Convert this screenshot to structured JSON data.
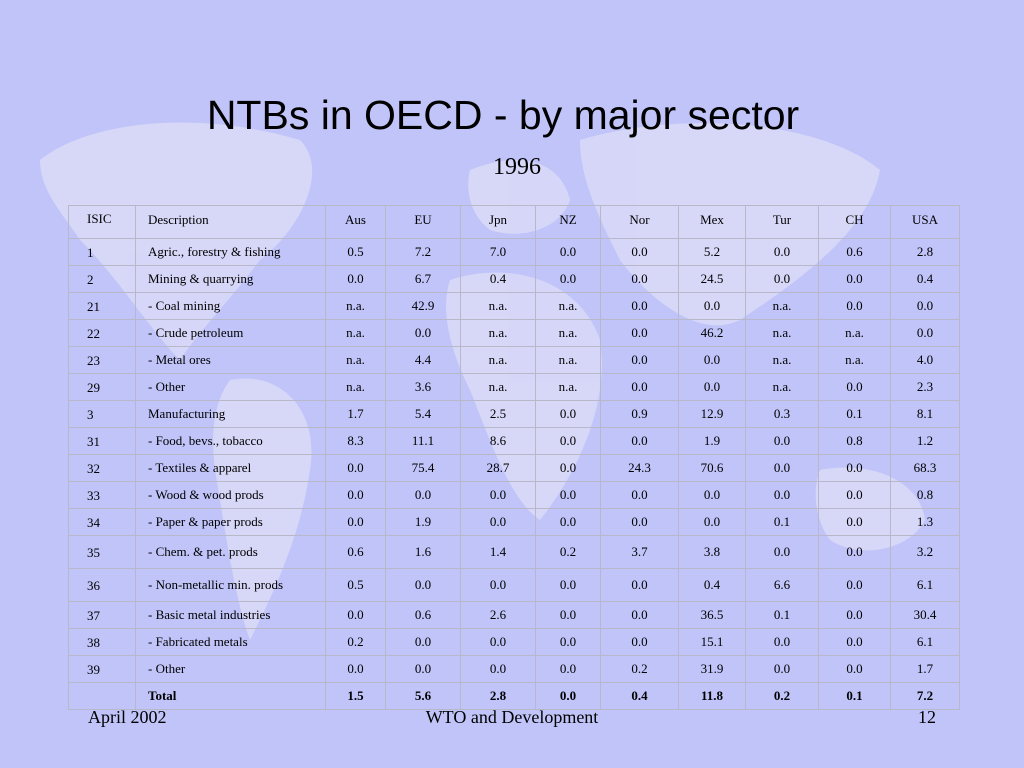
{
  "slide": {
    "title": "NTBs in OECD - by major sector",
    "subtitle": "1996",
    "table": {
      "header": [
        "ISIC",
        "Description",
        "Aus",
        "EU",
        "Jpn",
        "NZ",
        "Nor",
        "Mex",
        "Tur",
        "CH",
        "USA"
      ],
      "rows": [
        [
          "1",
          "Agric., forestry & fishing",
          "0.5",
          "7.2",
          "7.0",
          "0.0",
          "0.0",
          "5.2",
          "0.0",
          "0.6",
          "2.8"
        ],
        [
          "2",
          "Mining & quarrying",
          "0.0",
          "6.7",
          "0.4",
          "0.0",
          "0.0",
          "24.5",
          "0.0",
          "0.0",
          "0.4"
        ],
        [
          "21",
          "- Coal mining",
          "n.a.",
          "42.9",
          "n.a.",
          "n.a.",
          "0.0",
          "0.0",
          "n.a.",
          "0.0",
          "0.0"
        ],
        [
          "22",
          "- Crude petroleum",
          "n.a.",
          "0.0",
          "n.a.",
          "n.a.",
          "0.0",
          "46.2",
          "n.a.",
          "n.a.",
          "0.0"
        ],
        [
          "23",
          "- Metal ores",
          "n.a.",
          "4.4",
          "n.a.",
          "n.a.",
          "0.0",
          "0.0",
          "n.a.",
          "n.a.",
          "4.0"
        ],
        [
          "29",
          "- Other",
          "n.a.",
          "3.6",
          "n.a.",
          "n.a.",
          "0.0",
          "0.0",
          "n.a.",
          "0.0",
          "2.3"
        ],
        [
          "3",
          "Manufacturing",
          "1.7",
          "5.4",
          "2.5",
          "0.0",
          "0.9",
          "12.9",
          "0.3",
          "0.1",
          "8.1"
        ],
        [
          "31",
          "- Food, bevs., tobacco",
          "8.3",
          "11.1",
          "8.6",
          "0.0",
          "0.0",
          "1.9",
          "0.0",
          "0.8",
          "1.2"
        ],
        [
          "32",
          "- Textiles & apparel",
          "0.0",
          "75.4",
          "28.7",
          "0.0",
          "24.3",
          "70.6",
          "0.0",
          "0.0",
          "68.3"
        ],
        [
          "33",
          "- Wood & wood prods",
          "0.0",
          "0.0",
          "0.0",
          "0.0",
          "0.0",
          "0.0",
          "0.0",
          "0.0",
          "0.8"
        ],
        [
          "34",
          "- Paper & paper prods",
          "0.0",
          "1.9",
          "0.0",
          "0.0",
          "0.0",
          "0.0",
          "0.1",
          "0.0",
          "1.3"
        ],
        [
          "35",
          "- Chem. & pet. prods",
          "0.6",
          "1.6",
          "1.4",
          "0.2",
          "3.7",
          "3.8",
          "0.0",
          "0.0",
          "3.2"
        ],
        [
          "36",
          "- Non-metallic min. prods",
          "0.5",
          "0.0",
          "0.0",
          "0.0",
          "0.0",
          "0.4",
          "6.6",
          "0.0",
          "6.1"
        ],
        [
          "37",
          "- Basic metal industries",
          "0.0",
          "0.6",
          "2.6",
          "0.0",
          "0.0",
          "36.5",
          "0.1",
          "0.0",
          "30.4"
        ],
        [
          "38",
          "- Fabricated metals",
          "0.2",
          "0.0",
          "0.0",
          "0.0",
          "0.0",
          "15.1",
          "0.0",
          "0.0",
          "6.1"
        ],
        [
          "39",
          "- Other",
          "0.0",
          "0.0",
          "0.0",
          "0.0",
          "0.2",
          "31.9",
          "0.0",
          "0.0",
          "1.7"
        ]
      ],
      "total": {
        "label": "Total",
        "values": [
          "1.5",
          "5.6",
          "2.8",
          "0.0",
          "0.4",
          "11.8",
          "0.2",
          "0.1",
          "7.2"
        ]
      }
    },
    "footer": {
      "left": "April 2002",
      "center": "WTO and Development",
      "right": "12"
    }
  }
}
